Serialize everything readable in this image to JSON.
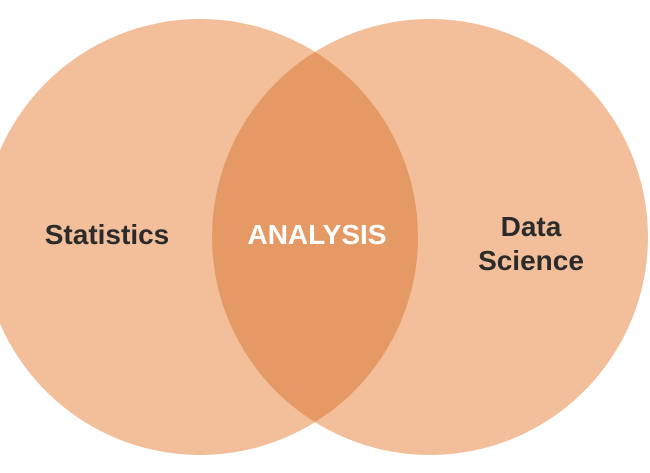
{
  "diagram": {
    "type": "venn",
    "sets": [
      {
        "id": "left",
        "label_lines": [
          "Statistics"
        ],
        "color": "#F2BF9A"
      },
      {
        "id": "right",
        "label_lines": [
          "Data",
          "Science"
        ],
        "color": "#F2BF9A"
      }
    ],
    "intersection": {
      "label": "ANALYSIS",
      "color": "#E59A65"
    },
    "label_color": "#2B2B2B",
    "intersection_label_color": "#FFFFFF"
  }
}
